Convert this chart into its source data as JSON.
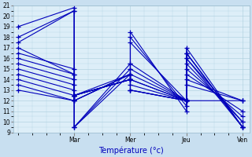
{
  "xlabel": "Température (°c)",
  "bg_color": "#c8dff0",
  "plot_bg_color": "#ddeef8",
  "line_color": "#0000bb",
  "grid_color": "#aaccdd",
  "marker": "+",
  "marker_size": 4,
  "marker_lw": 0.9,
  "line_width": 0.8,
  "ylim": [
    9,
    21
  ],
  "yticks": [
    9,
    10,
    11,
    12,
    13,
    14,
    15,
    16,
    17,
    18,
    19,
    20,
    21
  ],
  "tick_fontsize": 5.5,
  "xlabel_fontsize": 7,
  "xlabel_color": "#0000bb",
  "day_labels": [
    "Mar",
    "Mer",
    "Jeu",
    "Ven"
  ],
  "series": [
    [
      19.0,
      20.8,
      9.5,
      14.5,
      17.5,
      12.0,
      16.5,
      9.5
    ],
    [
      18.0,
      20.5,
      9.5,
      15.0,
      18.5,
      11.0,
      16.5,
      9.5
    ],
    [
      17.5,
      20.5,
      9.5,
      15.5,
      18.0,
      11.5,
      17.0,
      9.5
    ],
    [
      17.0,
      14.5,
      12.0,
      14.5,
      15.5,
      12.0,
      16.5,
      9.5
    ],
    [
      16.5,
      15.0,
      12.0,
      14.5,
      15.0,
      12.0,
      16.0,
      9.5
    ],
    [
      16.0,
      14.5,
      12.0,
      14.5,
      14.5,
      12.0,
      16.0,
      10.0
    ],
    [
      15.5,
      14.0,
      12.5,
      14.5,
      14.0,
      12.0,
      15.5,
      10.0
    ],
    [
      15.0,
      13.5,
      12.5,
      14.0,
      14.0,
      12.0,
      15.0,
      10.5
    ],
    [
      14.5,
      13.0,
      12.5,
      14.0,
      13.5,
      12.0,
      14.5,
      11.0
    ],
    [
      14.0,
      12.5,
      12.5,
      14.0,
      13.0,
      12.0,
      14.0,
      12.0
    ],
    [
      13.5,
      12.0,
      12.5,
      14.0,
      13.0,
      12.0,
      13.5,
      12.0
    ],
    [
      13.0,
      12.0,
      12.5,
      14.0,
      13.0,
      12.0,
      12.0,
      12.0
    ]
  ],
  "x_positions": [
    0,
    0.25,
    0.25,
    0.5,
    0.5,
    0.75,
    0.75,
    1.0
  ]
}
